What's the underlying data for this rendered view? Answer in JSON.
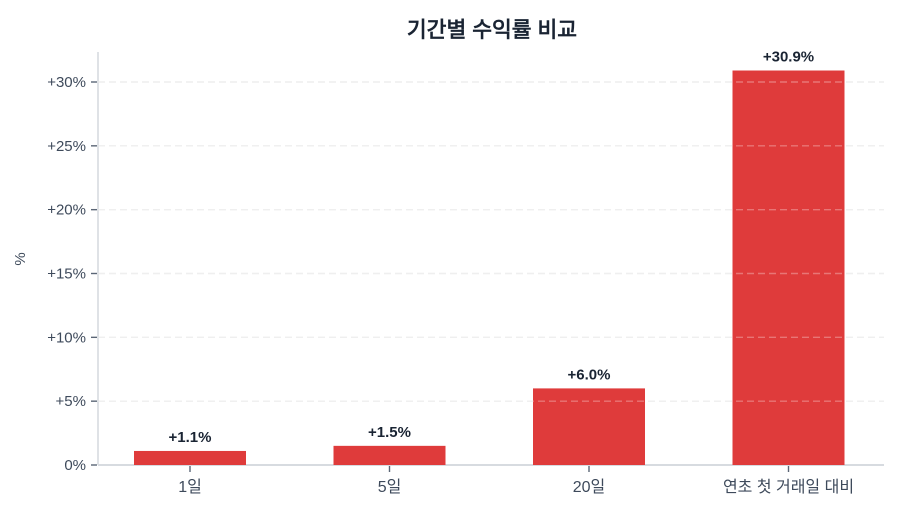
{
  "page": {
    "background": "#ffffff"
  },
  "chart_data": {
    "type": "bar",
    "title": "기간별 수익률 비교",
    "categories": [
      "1일",
      "5일",
      "20일",
      "연초 첫 거래일 대비"
    ],
    "values": [
      1.1,
      1.5,
      6.0,
      30.9
    ],
    "value_labels": [
      "+1.1%",
      "+1.5%",
      "+6.0%",
      "+30.9%"
    ],
    "xlabel": "",
    "ylabel": "%",
    "yticks": [
      {
        "value": 0,
        "label": "0%"
      },
      {
        "value": 5,
        "label": "+5%"
      },
      {
        "value": 10,
        "label": "+10%"
      },
      {
        "value": 15,
        "label": "+15%"
      },
      {
        "value": 20,
        "label": "+20%"
      },
      {
        "value": 25,
        "label": "+25%"
      },
      {
        "value": 30,
        "label": "+30%"
      }
    ],
    "ylim": [
      0,
      32.35
    ],
    "grid": true,
    "gridline_style": "dashed",
    "legend_position": null,
    "colors": {
      "bar": "#df3b3b",
      "title_text": "#1a2433",
      "value_label_text": "#1a2433",
      "tick_label_text": "#3e4a5b",
      "axis_line": "#d7dbe0",
      "tick_mark": "#5b6676",
      "gridline": "#e9e9e9"
    }
  }
}
